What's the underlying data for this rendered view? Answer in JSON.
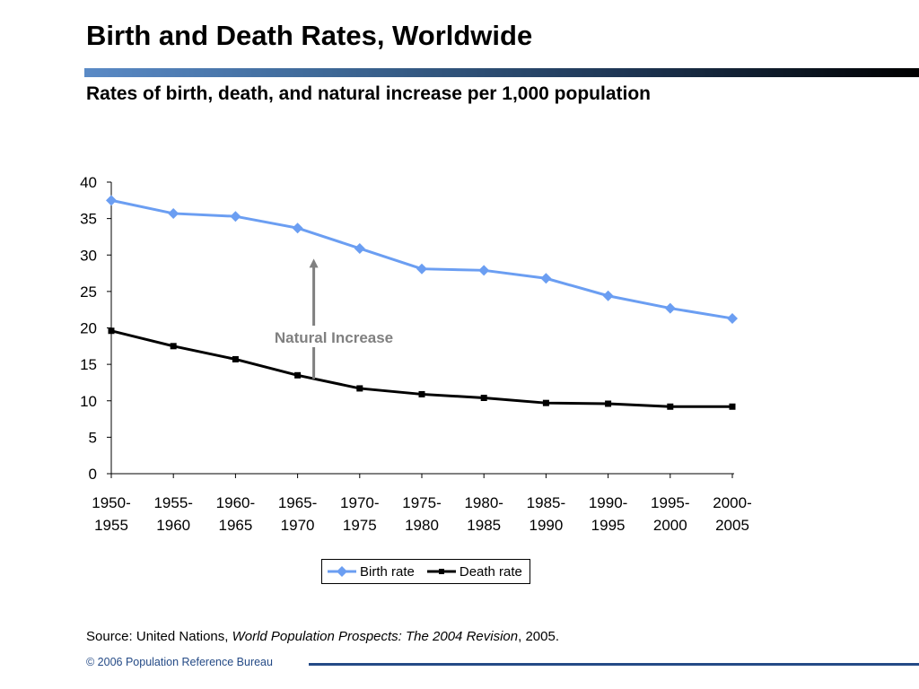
{
  "title": "Birth and Death Rates, Worldwide",
  "subtitle": "Rates of birth, death, and natural increase per 1,000 population",
  "colors": {
    "birth": "#6b9ef2",
    "death": "#000000",
    "annotation": "#808080",
    "footer": "#244a86"
  },
  "chart_data": {
    "type": "line",
    "categories": [
      [
        "1950-",
        "1955"
      ],
      [
        "1955-",
        "1960"
      ],
      [
        "1960-",
        "1965"
      ],
      [
        "1965-",
        "1970"
      ],
      [
        "1970-",
        "1975"
      ],
      [
        "1975-",
        "1980"
      ],
      [
        "1980-",
        "1985"
      ],
      [
        "1985-",
        "1990"
      ],
      [
        "1990-",
        "1995"
      ],
      [
        "1995-",
        "2000"
      ],
      [
        "2000-",
        "2005"
      ]
    ],
    "series": [
      {
        "name": "Birth rate",
        "color": "#6b9ef2",
        "marker": "diamond",
        "values": [
          37.5,
          35.7,
          35.3,
          33.7,
          30.9,
          28.1,
          27.9,
          26.8,
          24.4,
          22.7,
          21.3
        ]
      },
      {
        "name": "Death rate",
        "color": "#000000",
        "marker": "square",
        "values": [
          19.6,
          17.5,
          15.7,
          13.5,
          11.7,
          10.9,
          10.4,
          9.7,
          9.6,
          9.2,
          9.2
        ]
      }
    ],
    "ylim": [
      0,
      40
    ],
    "yticks": [
      0,
      5,
      10,
      15,
      20,
      25,
      30,
      35,
      40
    ],
    "grid": false,
    "legend": "bottom",
    "annotation": {
      "text": "Natural  Increase",
      "category_index": 3,
      "from": 13,
      "to": 29.5
    }
  },
  "legend": {
    "birth_label": "Birth rate",
    "death_label": "Death rate"
  },
  "source": {
    "prefix": "Source: United Nations, ",
    "italic": "World Population Prospects: The 2004 Revision",
    "suffix": ", 2005."
  },
  "footer": "© 2006 Population Reference Bureau"
}
